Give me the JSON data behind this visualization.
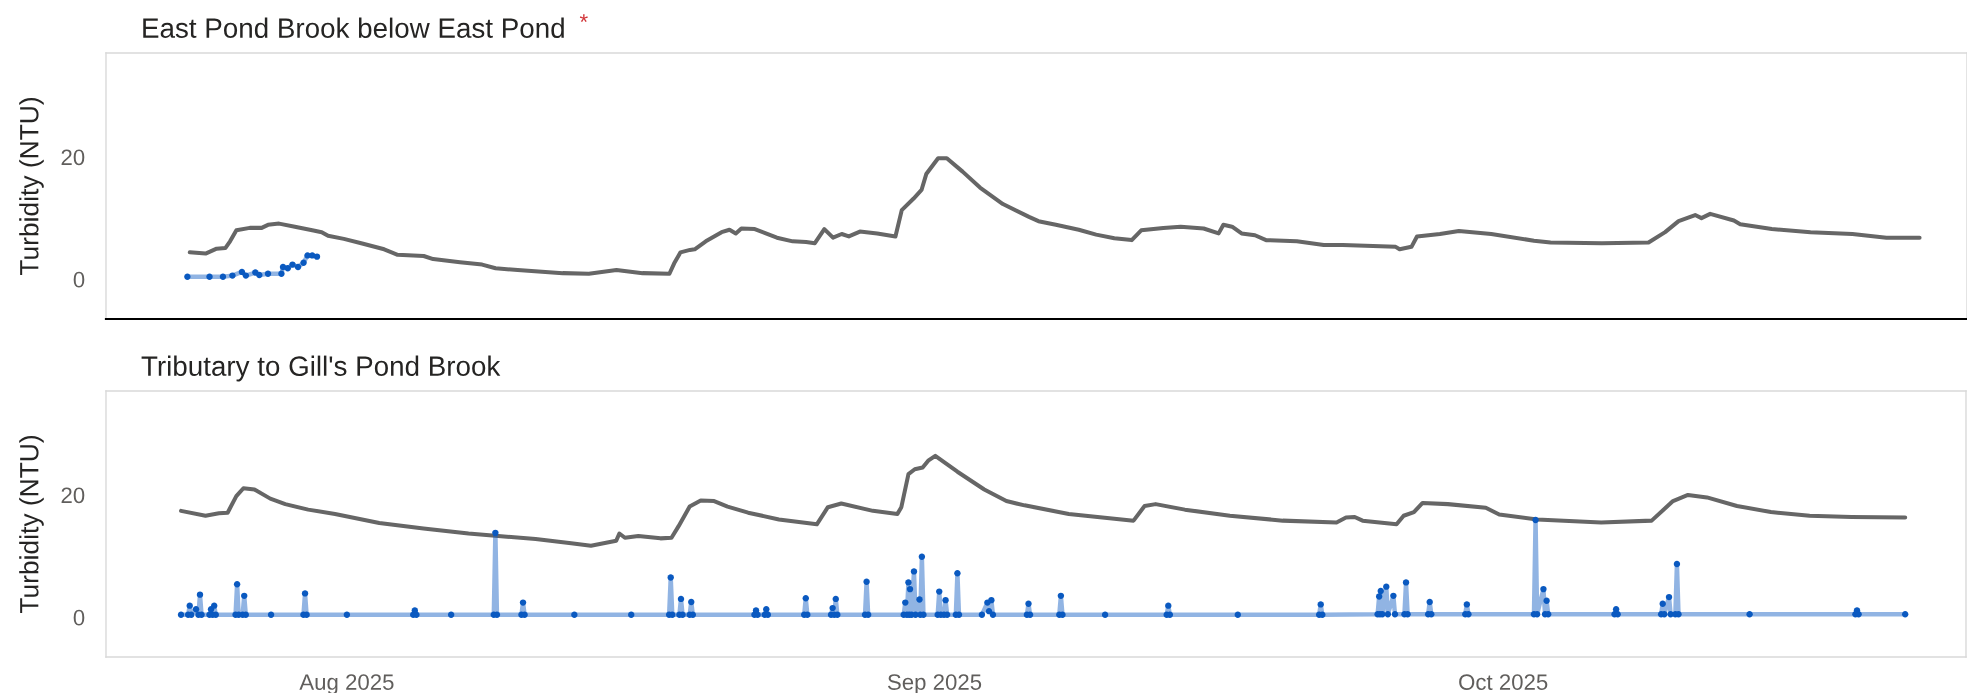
{
  "chart_data": [
    {
      "type": "line",
      "title": "East Pond Brook below East Pond",
      "ylabel": "Turbidity (NTU)",
      "annotations": [
        "*"
      ],
      "xlim": [
        "2025-07-19T07:00",
        "2025-10-25T10:00"
      ],
      "ylim": [
        -6.5,
        37
      ],
      "yticks": [
        0,
        20
      ],
      "tick_labels": "y",
      "series": [
        {
          "color": "#666666",
          "marker": "none",
          "x": [
            "2025-07-23T17:00",
            "2025-07-24T13:00",
            "2025-07-25T03:00",
            "2025-07-25T14:00",
            "2025-07-25T20:00",
            "2025-07-26T04:00",
            "2025-07-26T21:00",
            "2025-07-27T12:00",
            "2025-07-27T20:00",
            "2025-07-28T10:00",
            "2025-07-29T06:00",
            "2025-07-30T04:00",
            "2025-07-30T16:00",
            "2025-07-31T00:00",
            "2025-07-31T20:00",
            "2025-08-01T18:00",
            "2025-08-02T23:00",
            "2025-08-03T16:00",
            "2025-08-05T01:00",
            "2025-08-05T13:00",
            "2025-08-06T23:00",
            "2025-08-08T03:00",
            "2025-08-08T20:00",
            "2025-08-10T00:00",
            "2025-08-12T09:00",
            "2025-08-13T18:00",
            "2025-08-15T05:00",
            "2025-08-16T14:00",
            "2025-08-18T00:00",
            "2025-08-18T06:00",
            "2025-08-18T14:00",
            "2025-08-19T02:00",
            "2025-08-19T08:00",
            "2025-08-19T22:00",
            "2025-08-20T18:00",
            "2025-08-21T04:00",
            "2025-08-21T12:00",
            "2025-08-21T19:00",
            "2025-08-22T12:00",
            "2025-08-23T02:00",
            "2025-08-23T16:00",
            "2025-08-24T12:00",
            "2025-08-25T05:00",
            "2025-08-25T16:00",
            "2025-08-26T04:00",
            "2025-08-26T15:00",
            "2025-08-27T02:00",
            "2025-08-27T11:00",
            "2025-08-28T01:00",
            "2025-08-28T23:00",
            "2025-08-29T22:00",
            "2025-08-30T06:00",
            "2025-08-30T21:00",
            "2025-08-31T07:00",
            "2025-08-31T13:00",
            "2025-09-01T04:00",
            "2025-09-01T15:00",
            "2025-09-02T11:00",
            "2025-09-03T09:00",
            "2025-09-04T14:00",
            "2025-09-05T23:00",
            "2025-09-06T11:00",
            "2025-09-07T09:00",
            "2025-09-08T14:00",
            "2025-09-09T12:00",
            "2025-09-10T11:00",
            "2025-09-11T09:00",
            "2025-09-11T21:00",
            "2025-09-13T01:00",
            "2025-09-13T23:00",
            "2025-09-15T04:00",
            "2025-09-15T23:00",
            "2025-09-16T05:00",
            "2025-09-16T16:00",
            "2025-09-17T04:00",
            "2025-09-17T21:00",
            "2025-09-18T11:00",
            "2025-09-20T02:00",
            "2025-09-21T12:00",
            "2025-09-22T12:00",
            "2025-09-25T07:00",
            "2025-09-25T12:00",
            "2025-09-26T03:00",
            "2025-09-26T10:00",
            "2025-09-27T15:00",
            "2025-09-28T15:00",
            "2025-09-30T08:00",
            "2025-10-02T14:00",
            "2025-10-03T11:00",
            "2025-10-06T04:00",
            "2025-10-08T15:00",
            "2025-10-09T12:00",
            "2025-10-10T05:00",
            "2025-10-11T02:00",
            "2025-10-11T10:00",
            "2025-10-11T21:00",
            "2025-10-13T03:00",
            "2025-10-13T11:00",
            "2025-10-15T03:00",
            "2025-10-17T04:00",
            "2025-10-19T09:00",
            "2025-10-21T04:00",
            "2025-10-22T22:00"
          ],
          "values": [
            4.4,
            4.2,
            5.0,
            5.1,
            6.2,
            8.0,
            8.4,
            8.4,
            8.9,
            9.1,
            8.6,
            8.0,
            7.7,
            7.1,
            6.6,
            5.9,
            4.9,
            4.0,
            3.8,
            3.3,
            2.8,
            2.4,
            1.8,
            1.5,
            1.0,
            0.9,
            1.5,
            1.0,
            0.9,
            2.6,
            4.4,
            4.8,
            4.9,
            6.2,
            7.7,
            8.1,
            7.5,
            8.3,
            8.2,
            7.5,
            6.8,
            6.2,
            6.1,
            5.9,
            8.2,
            6.8,
            7.4,
            7.0,
            7.8,
            7.5,
            7.0,
            11.3,
            13.2,
            14.6,
            17.2,
            19.8,
            19.8,
            17.6,
            15.0,
            12.3,
            10.2,
            9.5,
            8.9,
            8.1,
            7.3,
            6.7,
            6.4,
            8.0,
            8.4,
            8.6,
            8.3,
            7.5,
            8.9,
            8.6,
            7.5,
            7.2,
            6.4,
            6.2,
            5.6,
            5.6,
            5.3,
            4.9,
            5.3,
            7.0,
            7.4,
            7.9,
            7.4,
            6.3,
            6.0,
            5.9,
            6.0,
            7.7,
            9.5,
            10.5,
            10.0,
            10.7,
            9.6,
            9.0,
            8.2,
            7.7,
            7.4,
            6.8,
            6.8
          ]
        },
        {
          "color": "#0a59c0",
          "marker": "circle",
          "x": [
            "2025-07-23T14:00",
            "2025-07-24T18:00",
            "2025-07-25T11:00",
            "2025-07-25T23:00",
            "2025-07-26T11:00",
            "2025-07-26T16:00",
            "2025-07-27T04:00",
            "2025-07-27T09:00",
            "2025-07-27T20:00",
            "2025-07-28T13:00",
            "2025-07-28T15:00",
            "2025-07-28T21:00",
            "2025-07-29T03:00",
            "2025-07-29T10:00",
            "2025-07-29T17:00",
            "2025-07-29T22:00",
            "2025-07-30T04:00",
            "2025-07-30T10:00"
          ],
          "values": [
            0.4,
            0.4,
            0.4,
            0.6,
            1.2,
            0.6,
            1.1,
            0.7,
            0.9,
            0.9,
            2.0,
            1.8,
            2.4,
            2.0,
            2.7,
            3.9,
            3.9,
            3.7
          ]
        }
      ]
    },
    {
      "type": "line",
      "title": "Tributary to Gill's Pond Brook",
      "ylabel": "Turbidity (NTU)",
      "xlim": [
        "2025-07-19T07:00",
        "2025-10-25T10:00"
      ],
      "xticks": [
        {
          "value": "2025-08-01",
          "label": "Aug 2025"
        },
        {
          "value": "2025-09-01",
          "label": "Sep 2025"
        },
        {
          "value": "2025-10-01",
          "label": "Oct 2025"
        }
      ],
      "ylim": [
        -6.5,
        37
      ],
      "yticks": [
        0,
        20
      ],
      "series": [
        {
          "color": "#666666",
          "marker": "none",
          "x": [
            "2025-07-23T06:00",
            "2025-07-24T13:00",
            "2025-07-25T06:00",
            "2025-07-25T17:00",
            "2025-07-26T04:00",
            "2025-07-26T13:00",
            "2025-07-27T03:00",
            "2025-07-27T23:00",
            "2025-07-28T18:00",
            "2025-07-29T23:00",
            "2025-07-31T09:00",
            "2025-08-02T17:00",
            "2025-08-05T01:00",
            "2025-08-07T10:00",
            "2025-08-09T07:00",
            "2025-08-10T23:00",
            "2025-08-12T20:00",
            "2025-08-13T21:00",
            "2025-08-15T05:00",
            "2025-08-15T09:00",
            "2025-08-15T16:00",
            "2025-08-16T09:00",
            "2025-08-17T13:00",
            "2025-08-18T03:00",
            "2025-08-18T12:00",
            "2025-08-19T02:00",
            "2025-08-19T16:00",
            "2025-08-20T09:00",
            "2025-08-21T02:00",
            "2025-08-22T04:00",
            "2025-08-23T19:00",
            "2025-08-25T19:00",
            "2025-08-26T09:00",
            "2025-08-27T02:00",
            "2025-08-28T18:00",
            "2025-08-30T01:00",
            "2025-08-30T06:00",
            "2025-08-30T15:00",
            "2025-08-30T23:00",
            "2025-08-31T09:00",
            "2025-08-31T16:00",
            "2025-09-01T01:00",
            "2025-09-02T05:00",
            "2025-09-03T15:00",
            "2025-09-04T19:00",
            "2025-09-05T18:00",
            "2025-09-08T02:00",
            "2025-09-11T12:00",
            "2025-09-12T02:00",
            "2025-09-12T16:00",
            "2025-09-14T05:00",
            "2025-09-16T14:00",
            "2025-09-19T09:00",
            "2025-09-22T05:00",
            "2025-09-22T17:00",
            "2025-09-23T04:00",
            "2025-09-23T14:00",
            "2025-09-25T09:00",
            "2025-09-25T18:00",
            "2025-09-26T07:00",
            "2025-09-26T18:00",
            "2025-09-28T02:00",
            "2025-09-30T02:00",
            "2025-09-30T19:00",
            "2025-10-02T19:00",
            "2025-10-06T04:00",
            "2025-10-08T20:00",
            "2025-10-09T23:00",
            "2025-10-10T18:00",
            "2025-10-11T18:00",
            "2025-10-13T08:00",
            "2025-10-15T03:00",
            "2025-10-17T04:00",
            "2025-10-19T09:00",
            "2025-10-22T05:00"
          ],
          "values": [
            17.4,
            16.6,
            17.0,
            17.1,
            19.8,
            21.1,
            20.9,
            19.4,
            18.5,
            17.6,
            16.9,
            15.4,
            14.5,
            13.7,
            13.2,
            12.8,
            12.1,
            11.7,
            12.5,
            13.7,
            13.0,
            13.3,
            12.9,
            13.0,
            14.9,
            18.1,
            19.1,
            19.0,
            18.1,
            17.1,
            16.0,
            15.2,
            18.0,
            18.6,
            17.4,
            16.9,
            18.0,
            23.4,
            24.2,
            24.5,
            25.6,
            26.4,
            23.8,
            20.9,
            19.0,
            18.3,
            16.9,
            15.8,
            18.2,
            18.5,
            17.6,
            16.6,
            15.8,
            15.5,
            16.3,
            16.4,
            15.8,
            15.2,
            16.6,
            17.2,
            18.7,
            18.5,
            17.9,
            16.8,
            16.0,
            15.5,
            15.8,
            19.0,
            20.0,
            19.6,
            18.2,
            17.2,
            16.6,
            16.4,
            16.3
          ]
        },
        {
          "color": "#0a59c0",
          "marker": "circle",
          "x": [
            "2025-07-23T06:00",
            "2025-07-23T15:00",
            "2025-07-23T17:00",
            "2025-07-23T19:00",
            "2025-07-24T01:00",
            "2025-07-24T04:00",
            "2025-07-24T06:00",
            "2025-07-24T08:00",
            "2025-07-24T18:00",
            "2025-07-24T20:00",
            "2025-07-24T22:00",
            "2025-07-25T00:00",
            "2025-07-25T02:00",
            "2025-07-26T03:00",
            "2025-07-26T05:00",
            "2025-07-26T07:00",
            "2025-07-26T12:00",
            "2025-07-26T14:00",
            "2025-07-26T16:00",
            "2025-07-28T00:00",
            "2025-07-29T17:00",
            "2025-07-29T19:00",
            "2025-07-29T21:00",
            "2025-08-01T00:00",
            "2025-08-04T12:00",
            "2025-08-04T14:00",
            "2025-08-04T16:00",
            "2025-08-06T12:00",
            "2025-08-08T18:00",
            "2025-08-08T20:00",
            "2025-08-08T22:00",
            "2025-08-10T05:00",
            "2025-08-10T07:00",
            "2025-08-10T09:00",
            "2025-08-13T00:00",
            "2025-08-16T00:00",
            "2025-08-18T00:00",
            "2025-08-18T02:00",
            "2025-08-18T04:00",
            "2025-08-18T13:00",
            "2025-08-18T15:00",
            "2025-08-18T17:00",
            "2025-08-19T02:00",
            "2025-08-19T04:00",
            "2025-08-19T06:00",
            "2025-08-22T12:00",
            "2025-08-22T14:00",
            "2025-08-22T16:00",
            "2025-08-23T01:00",
            "2025-08-23T03:00",
            "2025-08-23T05:00",
            "2025-08-25T03:00",
            "2025-08-25T05:00",
            "2025-08-25T07:00",
            "2025-08-26T13:00",
            "2025-08-26T15:00",
            "2025-08-26T17:00",
            "2025-08-26T19:00",
            "2025-08-26T21:00",
            "2025-08-28T08:00",
            "2025-08-28T10:00",
            "2025-08-28T12:00",
            "2025-08-30T09:00",
            "2025-08-30T11:00",
            "2025-08-30T13:00",
            "2025-08-30T15:00",
            "2025-08-30T16:00",
            "2025-08-30T17:00",
            "2025-08-30T19:00",
            "2025-08-30T22:00",
            "2025-08-31T00:00",
            "2025-08-31T05:00",
            "2025-08-31T06:00",
            "2025-08-31T08:00",
            "2025-08-31T10:00",
            "2025-09-01T04:00",
            "2025-09-01T06:00",
            "2025-09-01T08:00",
            "2025-09-01T12:00",
            "2025-09-01T14:00",
            "2025-09-01T16:00",
            "2025-09-02T03:00",
            "2025-09-02T05:00",
            "2025-09-02T07:00",
            "2025-09-03T12:00",
            "2025-09-03T19:00",
            "2025-09-03T21:00",
            "2025-09-04T00:00",
            "2025-09-04T02:00",
            "2025-09-05T21:00",
            "2025-09-05T23:00",
            "2025-09-06T01:00",
            "2025-09-07T14:00",
            "2025-09-07T16:00",
            "2025-09-07T18:00",
            "2025-09-10T00:00",
            "2025-09-13T06:00",
            "2025-09-13T08:00",
            "2025-09-13T10:00",
            "2025-09-17T00:00",
            "2025-09-21T07:00",
            "2025-09-21T09:00",
            "2025-09-21T11:00",
            "2025-09-24T09:00",
            "2025-09-24T11:00",
            "2025-09-24T12:00",
            "2025-09-24T13:00",
            "2025-09-24T15:00",
            "2025-09-24T20:00",
            "2025-09-24T22:00",
            "2025-09-25T05:00",
            "2025-09-25T07:00",
            "2025-09-25T19:00",
            "2025-09-25T21:00",
            "2025-09-25T23:00",
            "2025-09-27T01:00",
            "2025-09-27T03:00",
            "2025-09-27T05:00",
            "2025-09-29T00:00",
            "2025-09-29T02:00",
            "2025-09-29T04:00",
            "2025-10-02T15:00",
            "2025-10-02T17:00",
            "2025-10-02T19:00",
            "2025-10-03T03:00",
            "2025-10-03T05:00",
            "2025-10-03T07:00",
            "2025-10-03T09:00",
            "2025-10-06T21:00",
            "2025-10-06T23:00",
            "2025-10-07T01:00",
            "2025-10-09T08:00",
            "2025-10-09T10:00",
            "2025-10-09T12:00",
            "2025-10-09T18:00",
            "2025-10-09T20:00",
            "2025-10-10T02:00",
            "2025-10-10T04:00",
            "2025-10-10T06:00",
            "2025-10-14T00:00",
            "2025-10-19T14:00",
            "2025-10-19T16:00",
            "2025-10-19T18:00",
            "2025-10-22T05:00"
          ],
          "values": [
            0.4,
            0.4,
            1.9,
            0.4,
            1.3,
            0.4,
            3.7,
            0.4,
            0.4,
            1.3,
            0.4,
            1.9,
            0.4,
            0.4,
            5.4,
            0.4,
            0.4,
            3.5,
            0.4,
            0.4,
            0.4,
            3.9,
            0.4,
            0.4,
            0.4,
            1.1,
            0.4,
            0.4,
            0.4,
            13.8,
            0.4,
            0.4,
            2.4,
            0.4,
            0.4,
            0.4,
            0.4,
            6.5,
            0.4,
            0.4,
            3.0,
            0.4,
            0.4,
            2.5,
            0.4,
            0.4,
            1.1,
            0.4,
            0.4,
            1.3,
            0.4,
            0.4,
            3.1,
            0.4,
            0.4,
            1.5,
            0.4,
            3.0,
            0.4,
            0.4,
            5.8,
            0.4,
            0.4,
            2.4,
            0.4,
            5.7,
            0.4,
            4.6,
            0.4,
            7.5,
            0.4,
            2.9,
            0.4,
            9.9,
            0.4,
            0.4,
            4.2,
            0.4,
            0.4,
            2.8,
            0.4,
            0.4,
            7.2,
            0.4,
            0.4,
            2.4,
            1.0,
            2.8,
            0.4,
            0.4,
            2.2,
            0.4,
            0.4,
            3.5,
            0.4,
            0.4,
            0.4,
            1.9,
            0.4,
            0.4,
            0.4,
            2.1,
            0.4,
            0.5,
            3.4,
            0.5,
            4.3,
            0.5,
            5.0,
            0.5,
            3.5,
            0.5,
            0.5,
            5.7,
            0.5,
            0.5,
            2.5,
            0.5,
            0.5,
            2.1,
            0.5,
            0.5,
            15.9,
            0.5,
            4.6,
            0.5,
            2.7,
            0.5,
            0.5,
            1.3,
            0.5,
            0.5,
            2.2,
            0.5,
            3.3,
            0.5,
            0.5,
            8.7,
            0.5,
            0.5,
            0.5,
            1.1,
            0.5,
            0.5
          ]
        }
      ]
    }
  ]
}
